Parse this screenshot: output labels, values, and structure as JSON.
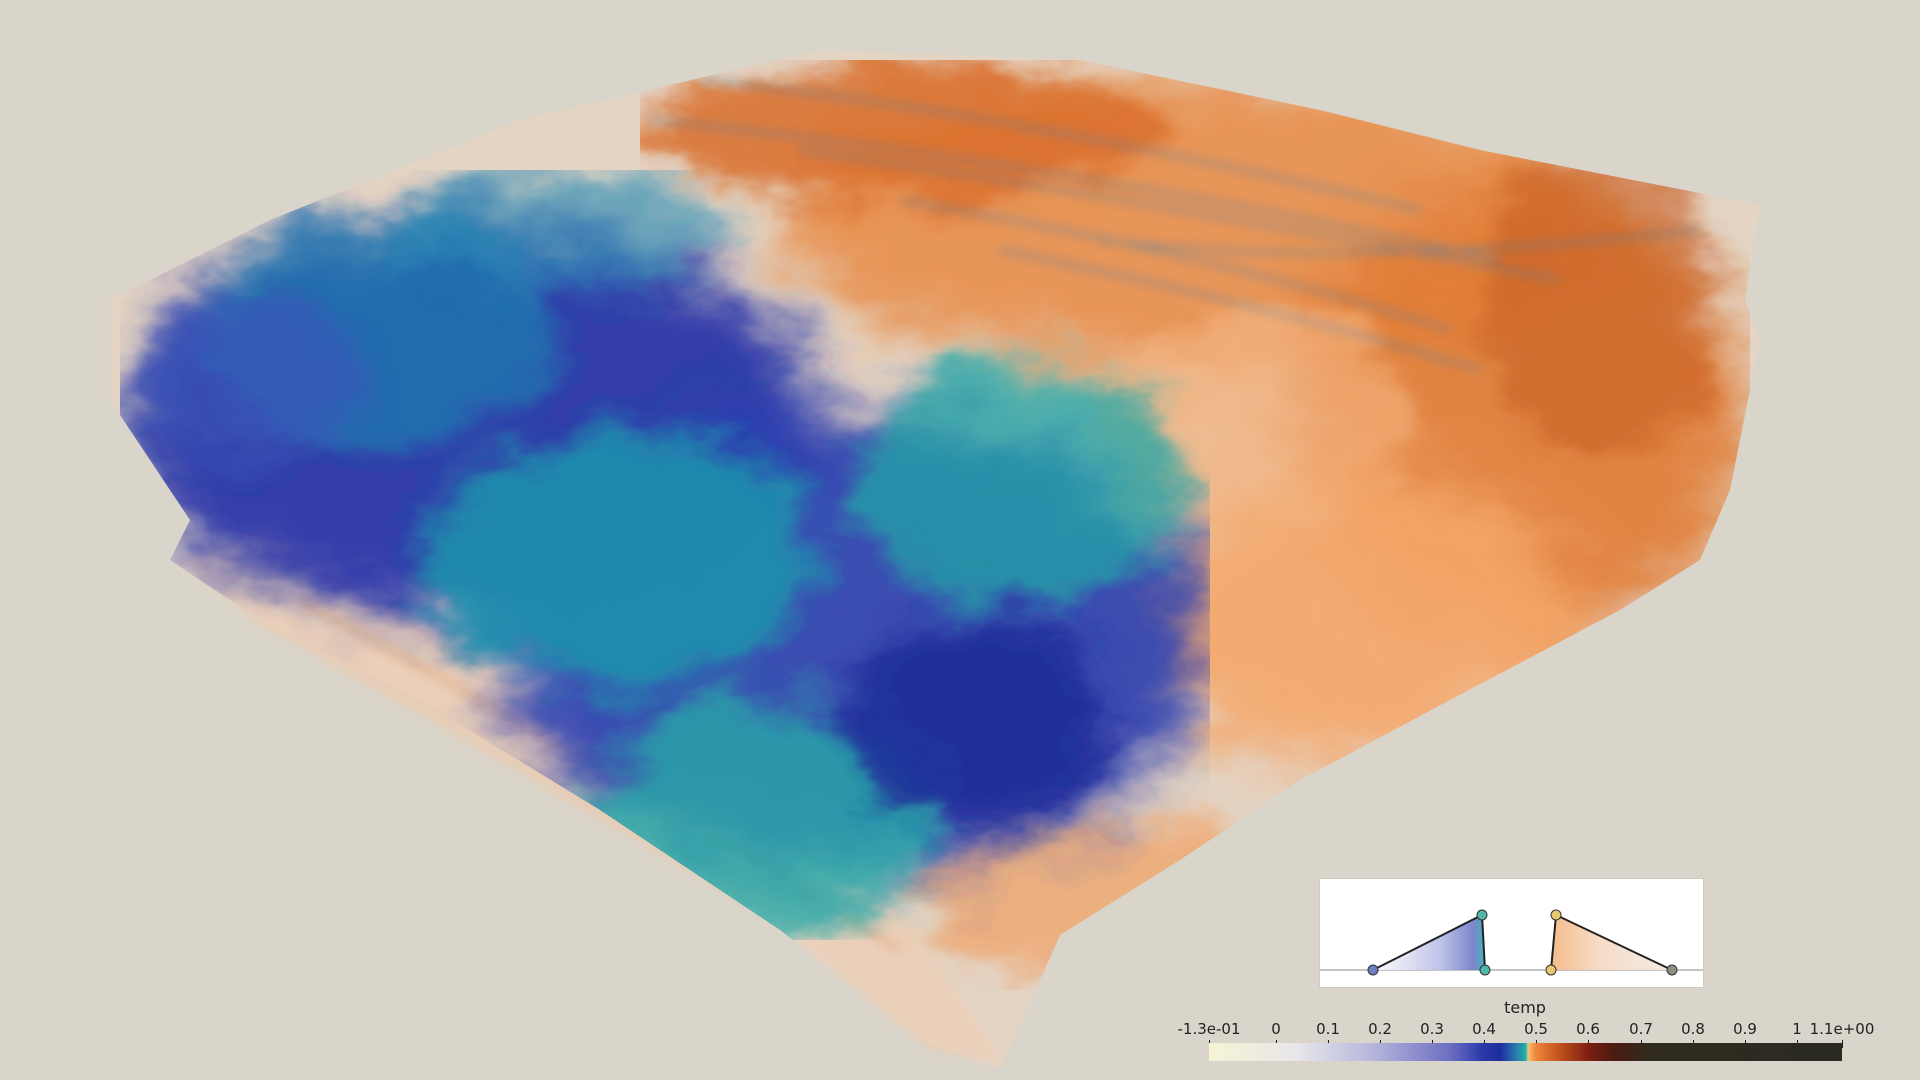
{
  "scene": {
    "background_color": "#d9d5cb",
    "volume_colors": {
      "cold_deep": "#2430a8",
      "cold_mid": "#1f86b0",
      "cold_teal": "#25aaa8",
      "hot_light": "#f6b27a",
      "hot_mid": "#ec8c47",
      "hot_dark": "#b95a22"
    }
  },
  "transfer_function_editor": {
    "background": "#ffffff",
    "left_peak_color": "#2e35b5",
    "right_peak_color": "#e87a3c"
  },
  "colorbar": {
    "title": "temp",
    "ticks": [
      {
        "label": "-1.3e-01"
      },
      {
        "label": "0"
      },
      {
        "label": "0.1"
      },
      {
        "label": "0.2"
      },
      {
        "label": "0.3"
      },
      {
        "label": "0.4"
      },
      {
        "label": "0.5"
      },
      {
        "label": "0.6"
      },
      {
        "label": "0.7"
      },
      {
        "label": "0.8"
      },
      {
        "label": "0.9"
      },
      {
        "label": "1"
      },
      {
        "label": "1.1e+00"
      }
    ]
  }
}
